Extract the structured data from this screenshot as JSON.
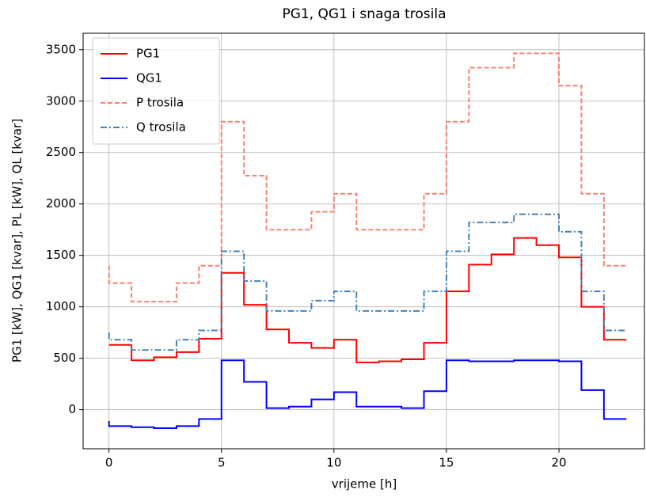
{
  "chart_data": {
    "type": "step",
    "title": "PG1, QG1 i snaga trosila",
    "x_label": "vrijeme [h]",
    "y_label": "PG1 [kW], QG1 [kvar], PL [kW], QL [kvar]",
    "x": [
      0,
      1,
      2,
      3,
      4,
      5,
      6,
      7,
      8,
      9,
      10,
      11,
      12,
      13,
      14,
      15,
      16,
      17,
      18,
      19,
      20,
      21,
      22,
      23
    ],
    "series": [
      {
        "name": "PG1",
        "color": "#ff0000",
        "dash": "solid",
        "values": [
          630,
          630,
          480,
          510,
          560,
          690,
          1330,
          1020,
          780,
          650,
          600,
          680,
          460,
          470,
          490,
          650,
          1150,
          1410,
          1510,
          1670,
          1600,
          1480,
          1000,
          680
        ]
      },
      {
        "name": "QG1",
        "color": "#0000ff",
        "dash": "solid",
        "values": [
          -110,
          -160,
          -170,
          -180,
          -160,
          -90,
          480,
          270,
          15,
          30,
          100,
          170,
          30,
          30,
          15,
          180,
          480,
          470,
          470,
          480,
          480,
          470,
          190,
          -90
        ]
      },
      {
        "name": "P trosila",
        "color": "#fa8072",
        "dash": "dashed",
        "values": [
          1400,
          1230,
          1050,
          1050,
          1230,
          1400,
          2800,
          2275,
          1750,
          1750,
          1925,
          2100,
          1750,
          1750,
          1750,
          2100,
          2800,
          3325,
          3325,
          3465,
          3465,
          3150,
          2100,
          1400
        ]
      },
      {
        "name": "Q trosila",
        "color": "#4682b4",
        "dash": "dashdot",
        "values": [
          750,
          680,
          580,
          580,
          680,
          770,
          1540,
          1250,
          960,
          960,
          1060,
          1150,
          960,
          960,
          960,
          1150,
          1540,
          1820,
          1820,
          1900,
          1900,
          1730,
          1150,
          770
        ]
      }
    ],
    "xlim": [
      -1.15,
      23.8
    ],
    "ylim": [
      -380,
      3660
    ],
    "xticks": [
      0,
      5,
      10,
      15,
      20
    ],
    "yticks": [
      0,
      500,
      1000,
      1500,
      2000,
      2500,
      3000,
      3500
    ],
    "grid": true,
    "legend": "upper left"
  }
}
